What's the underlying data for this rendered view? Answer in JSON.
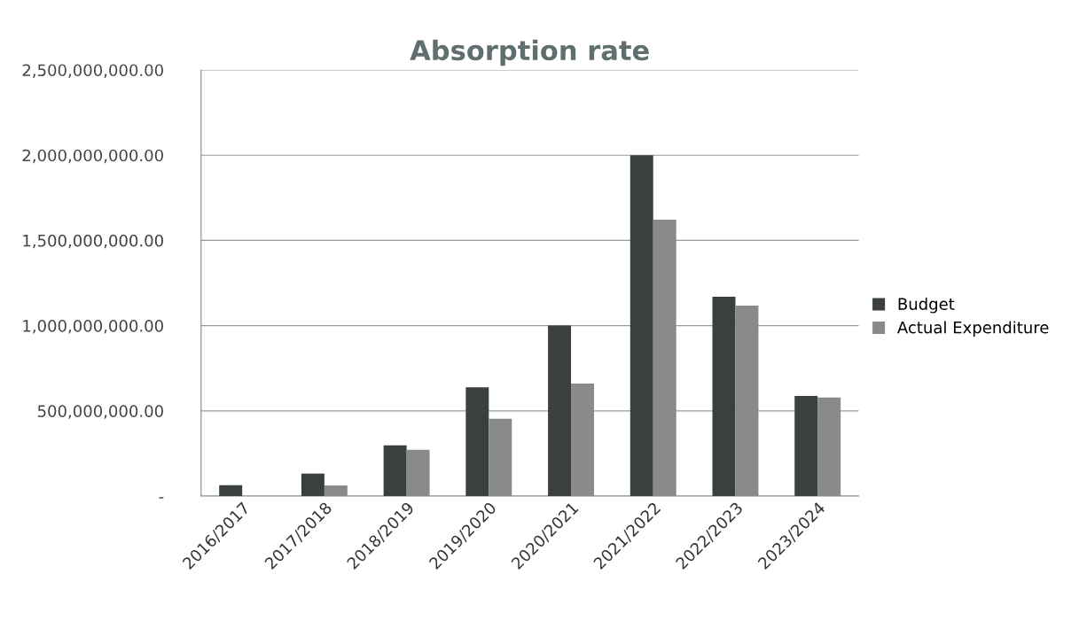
{
  "chart_data": {
    "type": "bar",
    "title": "Absorption rate",
    "categories": [
      "2016/2017",
      "2017/2018",
      "2018/2019",
      "2019/2020",
      "2020/2021",
      "2021/2022",
      "2022/2023",
      "2023/2024"
    ],
    "series": [
      {
        "name": "Budget",
        "color": "#3a3f3f",
        "values": [
          64000000,
          132000000,
          298000000,
          638000000,
          1000000000,
          2000000000,
          1169000000,
          588000000
        ]
      },
      {
        "name": "Actual Expenditure",
        "color": "#8a8a8a",
        "values": [
          0,
          62000000,
          272000000,
          453000000,
          660000000,
          1621000000,
          1117000000,
          579000000
        ]
      }
    ],
    "ylim": [
      0,
      2500000000
    ],
    "yticks": [
      {
        "value": 0,
        "label": "-"
      },
      {
        "value": 500000000,
        "label": "500,000,000.00"
      },
      {
        "value": 1000000000,
        "label": "1,000,000,000.00"
      },
      {
        "value": 1500000000,
        "label": "1,500,000,000.00"
      },
      {
        "value": 2000000000,
        "label": "2,000,000,000.00"
      },
      {
        "value": 2500000000,
        "label": "2,500,000,000.00"
      }
    ],
    "grid": "y",
    "legend": "right"
  }
}
